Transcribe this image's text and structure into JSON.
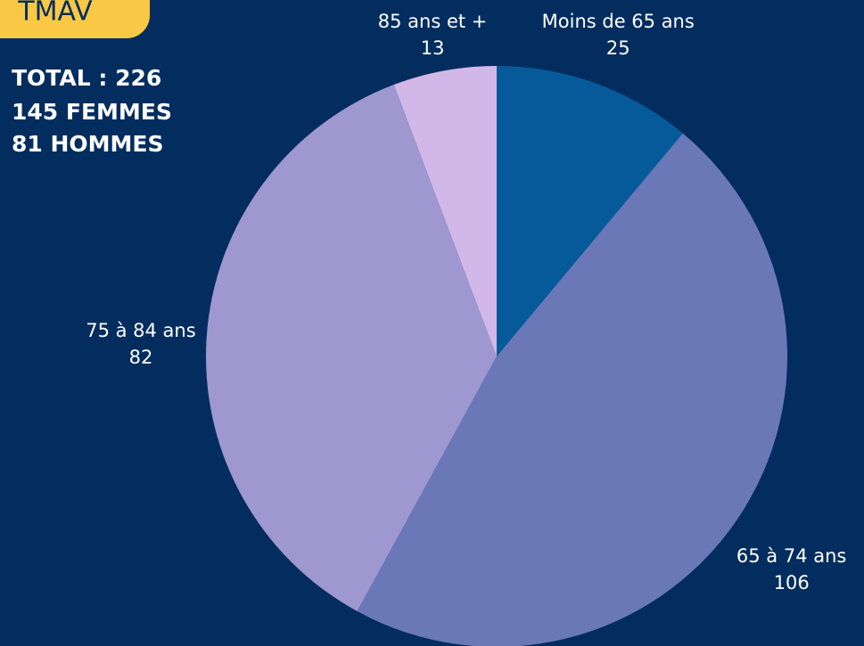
{
  "header": {
    "badge": "TMAV"
  },
  "summary": [
    "TOTAL : 226",
    "145 FEMMES",
    "81 HOMMES"
  ],
  "chart_data": {
    "type": "pie",
    "categories": [
      "Moins de 65 ans",
      "65 à 74 ans",
      "75 à 84 ans",
      "85 ans et +"
    ],
    "values": [
      25,
      106,
      82,
      13
    ],
    "colors": [
      "#075a9a",
      "#6a78b8",
      "#9f97cf",
      "#d2b8e8"
    ]
  }
}
